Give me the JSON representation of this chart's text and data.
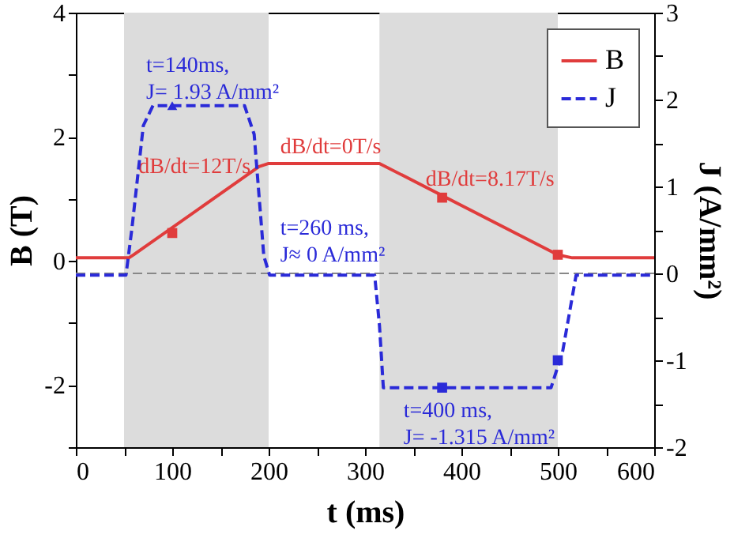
{
  "chart_data": {
    "type": "line",
    "xlabel": "t (ms)",
    "ylabel": "B (T)",
    "y2label": "J (A/mm²)",
    "xlim": [
      0,
      600
    ],
    "xticks": [
      0,
      {
        "value": 50,
        "label": null
      },
      100,
      {
        "value": 150,
        "label": null
      },
      200,
      {
        "value": 250,
        "label": null
      },
      300,
      {
        "value": 350,
        "label": null
      },
      400,
      {
        "value": 450,
        "label": null
      },
      500,
      {
        "value": 550,
        "label": null
      },
      600
    ],
    "ylim": [
      -3,
      4
    ],
    "yticks": [
      {
        "value": -3,
        "label": null
      },
      -2,
      {
        "value": -1,
        "label": null
      },
      0,
      {
        "value": 1,
        "label": null
      },
      2,
      {
        "value": 3,
        "label": null
      },
      4
    ],
    "y2lim": [
      -2,
      3
    ],
    "y2ticks": [
      -2,
      {
        "value": -1.5,
        "label": null
      },
      -1,
      {
        "value": -0.5,
        "label": null
      },
      0,
      {
        "value": 0.5,
        "label": null
      },
      1,
      {
        "value": 1.5,
        "label": null
      },
      2,
      {
        "value": 2.5,
        "label": null
      },
      3
    ],
    "series": [
      {
        "name": "B",
        "color": "#e03c3c",
        "line_style": "solid",
        "x": [
          0,
          55,
          60,
          190,
          200,
          315,
          500,
          515,
          600
        ],
        "values": [
          0.05,
          0.05,
          0.1,
          1.52,
          1.57,
          1.57,
          0.1,
          0.05,
          0.05
        ]
      },
      {
        "name": "J",
        "axis": "y2",
        "color": "#2a2ad8",
        "line_style": "dashed",
        "x": [
          0,
          52,
          58,
          70,
          80,
          175,
          185,
          195,
          201,
          310,
          315,
          319,
          493,
          505,
          519,
          600
        ],
        "values": [
          -0.02,
          -0.02,
          0.5,
          1.7,
          1.93,
          1.93,
          1.6,
          0.2,
          -0.02,
          -0.02,
          -0.6,
          -1.315,
          -1.315,
          -0.9,
          -0.02,
          -0.02
        ]
      },
      {
        "type": "scatter",
        "color": "#e03c3c",
        "marker": "square",
        "x": [
          100,
          380,
          500
        ],
        "values": [
          0.45,
          1.02,
          0.1
        ]
      },
      {
        "type": "scatter",
        "axis": "y2",
        "color": "#2a2ad8",
        "marker": "triangle",
        "x": [
          100
        ],
        "values": [
          1.93
        ]
      },
      {
        "type": "scatter",
        "axis": "y2",
        "color": "#2a2ad8",
        "marker": "square",
        "x": [
          380,
          500
        ],
        "values": [
          -1.315,
          -1.0
        ]
      }
    ],
    "bands": [
      {
        "axis": "x",
        "from": 50,
        "to": 200,
        "color": "#dcdcdc"
      },
      {
        "axis": "x",
        "from": 315,
        "to": 500,
        "color": "#dcdcdc"
      }
    ],
    "ref_lines": [
      {
        "axis": "y2",
        "value": 0,
        "color": "#888888",
        "line_style": "dashed"
      }
    ],
    "annotations": [
      "t=140ms,\nJ= 1.93 A/mm²",
      "dB/dt=12T/s",
      "dB/dt=0T/s",
      "t=260 ms,\nJ≈ 0 A/mm²",
      "dB/dt=8.17T/s",
      "t=400 ms,\nJ= -1.315 A/mm²"
    ],
    "legend": "top right",
    "grid": false
  }
}
